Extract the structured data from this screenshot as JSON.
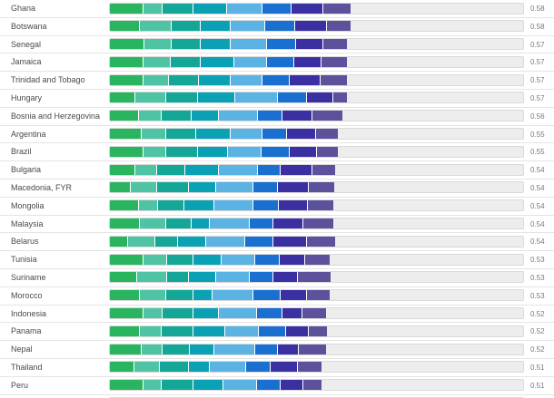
{
  "chart_data": {
    "type": "bar",
    "orientation": "horizontal",
    "stacked": true,
    "title": "",
    "xlabel": "",
    "ylabel": "",
    "xlim": [
      0,
      1
    ],
    "grid": false,
    "legend_position": "none",
    "value_label_format": "two-decimal",
    "track_color": "#ededed",
    "track_border_color": "#d9d9d9",
    "divider_color": "#e4e4e4",
    "label_color": "#4a4a4a",
    "value_color": "#777777",
    "segment_colors": [
      "#29b55f",
      "#4ec4a5",
      "#14a797",
      "#0aa1b5",
      "#5bb3e4",
      "#1a70d0",
      "#3a30a2",
      "#5c519b"
    ],
    "rows": [
      {
        "label": "Ghana",
        "value": "0.58",
        "components": [
          0.081,
          0.046,
          0.074,
          0.081,
          0.085,
          0.07,
          0.077,
          0.066
        ]
      },
      {
        "label": "Botswana",
        "value": "0.58",
        "components": [
          0.072,
          0.077,
          0.07,
          0.072,
          0.083,
          0.072,
          0.077,
          0.057
        ]
      },
      {
        "label": "Senegal",
        "value": "0.57",
        "components": [
          0.083,
          0.066,
          0.07,
          0.072,
          0.088,
          0.07,
          0.066,
          0.057
        ]
      },
      {
        "label": "Jamaica",
        "value": "0.57",
        "components": [
          0.081,
          0.066,
          0.072,
          0.081,
          0.079,
          0.066,
          0.066,
          0.061
        ]
      },
      {
        "label": "Trinidad and Tobago",
        "value": "0.57",
        "components": [
          0.081,
          0.061,
          0.072,
          0.077,
          0.077,
          0.066,
          0.074,
          0.063
        ]
      },
      {
        "label": "Hungary",
        "value": "0.57",
        "components": [
          0.061,
          0.074,
          0.077,
          0.09,
          0.103,
          0.07,
          0.063,
          0.033
        ]
      },
      {
        "label": "Bosnia and Herzegovina",
        "value": "0.56",
        "components": [
          0.07,
          0.055,
          0.072,
          0.066,
          0.094,
          0.059,
          0.072,
          0.072
        ]
      },
      {
        "label": "Argentina",
        "value": "0.55",
        "components": [
          0.077,
          0.059,
          0.072,
          0.083,
          0.077,
          0.059,
          0.07,
          0.053
        ]
      },
      {
        "label": "Brazil",
        "value": "0.55",
        "components": [
          0.081,
          0.055,
          0.077,
          0.072,
          0.081,
          0.068,
          0.066,
          0.05
        ]
      },
      {
        "label": "Bulgaria",
        "value": "0.54",
        "components": [
          0.061,
          0.053,
          0.068,
          0.081,
          0.094,
          0.055,
          0.077,
          0.053
        ]
      },
      {
        "label": "Macedonia, FYR",
        "value": "0.54",
        "components": [
          0.05,
          0.063,
          0.077,
          0.066,
          0.09,
          0.059,
          0.074,
          0.061
        ]
      },
      {
        "label": "Mongolia",
        "value": "0.54",
        "components": [
          0.07,
          0.046,
          0.063,
          0.072,
          0.094,
          0.063,
          0.07,
          0.061
        ]
      },
      {
        "label": "Malaysia",
        "value": "0.54",
        "components": [
          0.072,
          0.063,
          0.061,
          0.044,
          0.098,
          0.055,
          0.074,
          0.072
        ]
      },
      {
        "label": "Belarus",
        "value": "0.54",
        "components": [
          0.044,
          0.066,
          0.055,
          0.066,
          0.096,
          0.066,
          0.083,
          0.066
        ]
      },
      {
        "label": "Tunisia",
        "value": "0.53",
        "components": [
          0.081,
          0.057,
          0.063,
          0.068,
          0.081,
          0.059,
          0.061,
          0.059
        ]
      },
      {
        "label": "Suriname",
        "value": "0.53",
        "components": [
          0.066,
          0.072,
          0.053,
          0.066,
          0.079,
          0.059,
          0.059,
          0.077
        ]
      },
      {
        "label": "Morocco",
        "value": "0.53",
        "components": [
          0.072,
          0.063,
          0.066,
          0.046,
          0.098,
          0.066,
          0.063,
          0.055
        ]
      },
      {
        "label": "Indonesia",
        "value": "0.52",
        "components": [
          0.081,
          0.046,
          0.074,
          0.061,
          0.092,
          0.061,
          0.05,
          0.055
        ]
      },
      {
        "label": "Panama",
        "value": "0.52",
        "components": [
          0.072,
          0.053,
          0.077,
          0.077,
          0.079,
          0.066,
          0.055,
          0.044
        ]
      },
      {
        "label": "Nepal",
        "value": "0.52",
        "components": [
          0.077,
          0.05,
          0.066,
          0.059,
          0.098,
          0.055,
          0.05,
          0.066
        ]
      },
      {
        "label": "Thailand",
        "value": "0.51",
        "components": [
          0.059,
          0.061,
          0.07,
          0.05,
          0.088,
          0.059,
          0.066,
          0.057
        ]
      },
      {
        "label": "Peru",
        "value": "0.51",
        "components": [
          0.081,
          0.044,
          0.077,
          0.072,
          0.081,
          0.057,
          0.055,
          0.044
        ]
      },
      {
        "label": "",
        "value": "",
        "components": [
          0.066,
          0.055,
          0.07,
          0.066,
          0.088,
          0.061,
          0.061,
          0.044
        ],
        "partial": true
      }
    ]
  }
}
